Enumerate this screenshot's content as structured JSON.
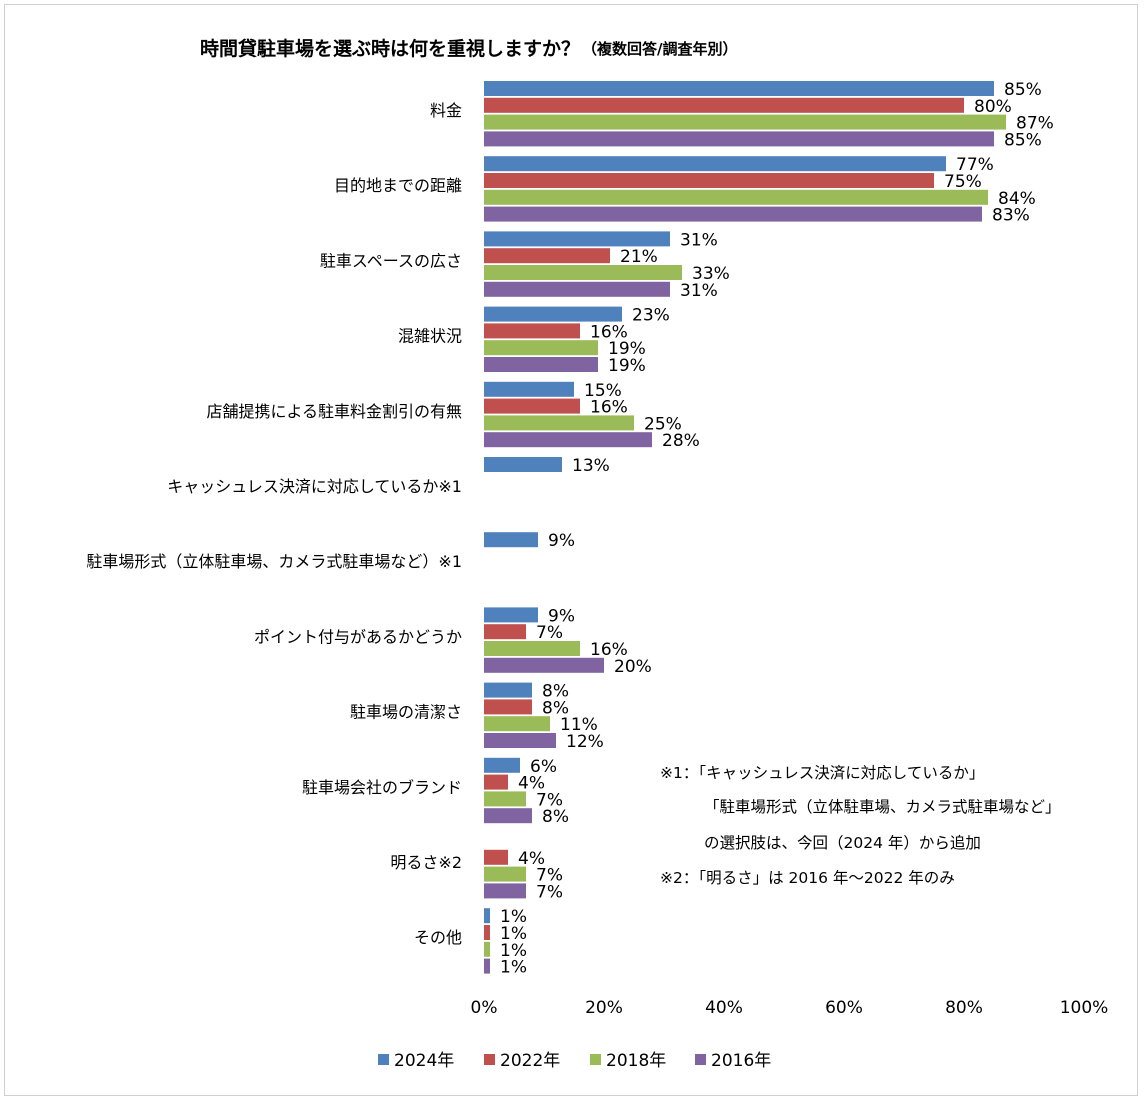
{
  "chart_data": {
    "type": "bar",
    "orientation": "horizontal",
    "title": "時間貸駐車場を選ぶ時は何を重視しますか？",
    "subtitle": "（複数回答/調査年別）",
    "categories": [
      "料金",
      "目的地までの距離",
      "駐車スペースの広さ",
      "混雑状況",
      "店舗提携による駐車料金割引の有無",
      "キャッシュレス決済に対応しているか※1",
      "駐車場形式（立体駐車場、カメラ式駐車場など）※1",
      "ポイント付与があるかどうか",
      "駐車場の清潔さ",
      "駐車場会社のブランド",
      "明るさ※2",
      "その他"
    ],
    "series": [
      {
        "name": "2024年",
        "color": "#4f81bd",
        "values": [
          85,
          77,
          31,
          23,
          15,
          13,
          9,
          9,
          8,
          6,
          null,
          1
        ]
      },
      {
        "name": "2022年",
        "color": "#c0504d",
        "values": [
          80,
          75,
          21,
          16,
          16,
          null,
          null,
          7,
          8,
          4,
          4,
          1
        ]
      },
      {
        "name": "2018年",
        "color": "#9bbb59",
        "values": [
          87,
          84,
          33,
          19,
          25,
          null,
          null,
          16,
          11,
          7,
          7,
          1
        ]
      },
      {
        "name": "2016年",
        "color": "#8064a2",
        "values": [
          85,
          83,
          31,
          19,
          28,
          null,
          null,
          20,
          12,
          8,
          7,
          1
        ]
      }
    ],
    "xlim": [
      0,
      100
    ],
    "xticks": [
      "0%",
      "20%",
      "40%",
      "60%",
      "80%",
      "100%"
    ],
    "value_suffix": "%",
    "legend_position": "bottom",
    "notes": [
      "※1：「キャッシュレス決済に対応しているか」",
      "「駐車場形式（立体駐車場、カメラ式駐車場など」",
      "の選択肢は、今回（2024 年）から追加",
      "※2：「明るさ」は 2016 年～2022 年のみ"
    ]
  }
}
